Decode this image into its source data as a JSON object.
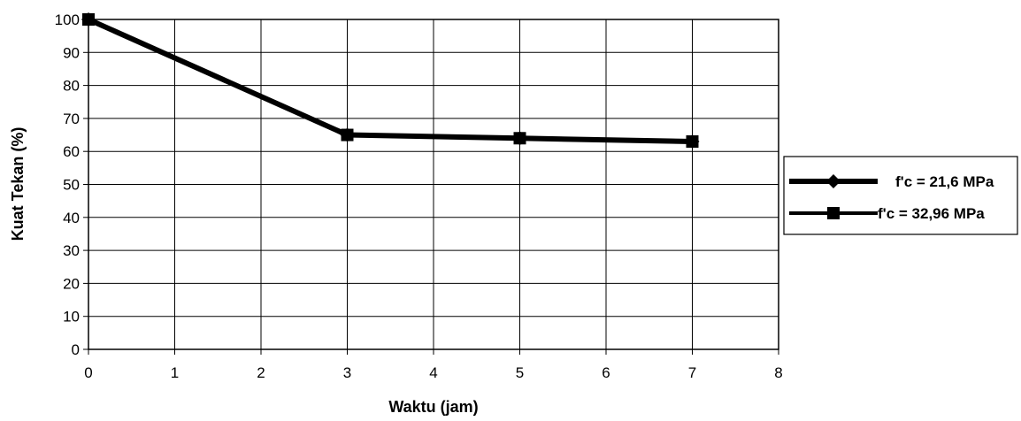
{
  "chart_data": {
    "type": "line",
    "xlabel": "Waktu (jam)",
    "ylabel": "Kuat Tekan (%)",
    "xlim": [
      0,
      8
    ],
    "ylim": [
      0,
      100
    ],
    "x_ticks": [
      "0",
      "1",
      "2",
      "3",
      "4",
      "5",
      "6",
      "7",
      "8"
    ],
    "y_ticks": [
      "0",
      "10",
      "20",
      "30",
      "40",
      "50",
      "60",
      "70",
      "80",
      "90",
      "100"
    ],
    "grid": true,
    "legend_position": "right",
    "series": [
      {
        "name": "f'c = 21,6 MPa",
        "marker": "diamond",
        "color": "#000000",
        "x": [
          0,
          3,
          5,
          7
        ],
        "y": [
          100,
          65,
          64,
          63
        ]
      },
      {
        "name": "f'c = 32,96 MPa",
        "marker": "square",
        "color": "#000000",
        "x": [
          0,
          3,
          5,
          7
        ],
        "y": [
          100,
          65,
          64,
          63
        ]
      }
    ]
  }
}
